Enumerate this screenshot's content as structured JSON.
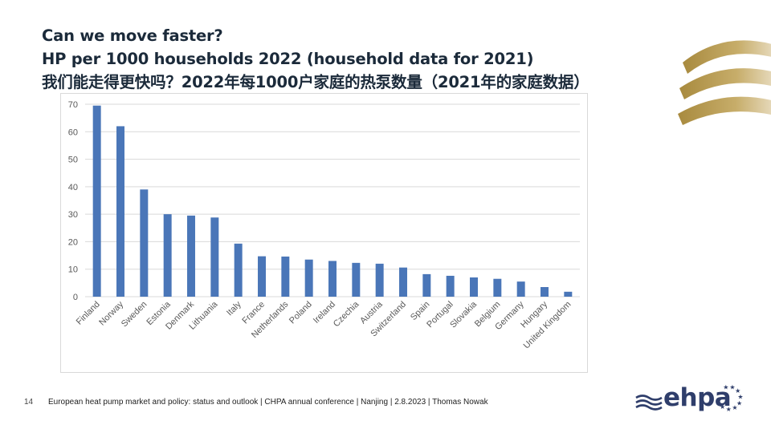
{
  "slide": {
    "title_lines": [
      "Can we move faster?",
      "HP per 1000 households 2022 (household data for 2021)",
      "我们能走得更快吗？2022年每1000户家庭的热泵数量（2021年的家庭数据）"
    ],
    "page_number": "14",
    "footer": "European heat pump market and policy: status and outlook  | CHPA annual conference | Nanjing | 2.8.2023 | Thomas Nowak",
    "logo_text": "ehpa"
  },
  "colors": {
    "bar": "#4a76b8",
    "grid": "#d9d9d9",
    "axis_text": "#595959",
    "arc_gold": "#b89a4e"
  },
  "chart_data": {
    "type": "bar",
    "title": "",
    "xlabel": "",
    "ylabel": "",
    "ylim": [
      0,
      70
    ],
    "yticks": [
      0,
      10,
      20,
      30,
      40,
      50,
      60,
      70
    ],
    "grid": true,
    "categories": [
      "Finland",
      "Norway",
      "Sweden",
      "Estonia",
      "Denmark",
      "Lithuania",
      "Italy",
      "France",
      "Netherlands",
      "Poland",
      "Ireland",
      "Czechia",
      "Austria",
      "Switzerland",
      "Spain",
      "Portugal",
      "Slovakia",
      "Belgium",
      "Germany",
      "Hungary",
      "United Kingdom"
    ],
    "values": [
      69.5,
      62,
      39,
      30,
      29.5,
      28.8,
      19.3,
      14.7,
      14.6,
      13.5,
      13,
      12.3,
      12,
      10.6,
      8.2,
      7.6,
      7,
      6.5,
      5.5,
      3.5,
      1.8
    ]
  }
}
